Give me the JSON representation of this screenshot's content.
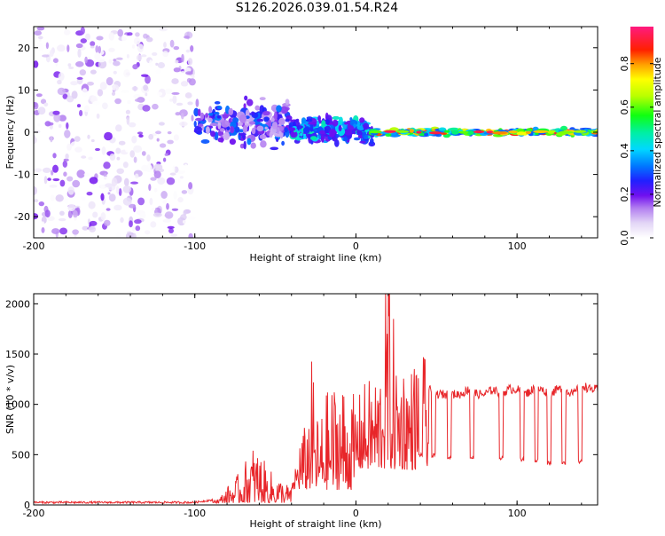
{
  "figure_title": "S126.2026.039.01.54.R24",
  "colors": {
    "snr_line": "#e8262a",
    "spectrogram_colormap": [
      "#ffffff",
      "#e6d8f7",
      "#c9a8f0",
      "#9a5ae8",
      "#7a18ef",
      "#3d12f5",
      "#0000ff",
      "#00b4ff",
      "#00e5c8",
      "#00ff00",
      "#c8ff00",
      "#ffff00",
      "#ff8c00",
      "#ff0000",
      "#ff1493"
    ]
  },
  "chart_data": [
    {
      "type": "heatmap",
      "title": "",
      "xlabel": "Height of straight line (km)",
      "ylabel": "Frequency (Hz)",
      "xlim": [
        -200,
        150
      ],
      "ylim": [
        -25,
        25
      ],
      "xticks": [
        -200,
        -100,
        0,
        100
      ],
      "yticks": [
        -20,
        -10,
        0,
        10,
        20
      ],
      "colorbar": {
        "label": "Normalized spectral amplitude",
        "range": [
          0.0,
          0.97
        ],
        "ticks": [
          "0.0",
          "0.2",
          "0.4",
          "0.6",
          "0.8"
        ]
      },
      "regions": [
        {
          "x": [
            -200,
            -101
          ],
          "freq_spread_hz": [
            -25,
            25
          ],
          "amplitude": [
            0.0,
            0.2
          ],
          "description": "noise"
        },
        {
          "x": [
            -100,
            -40
          ],
          "freq_center_hz": 2,
          "freq_halfwidth_hz": 7,
          "amplitude": [
            0.1,
            0.35
          ]
        },
        {
          "x": [
            -40,
            10
          ],
          "freq_center_hz": 0.5,
          "freq_halfwidth_hz": 4,
          "amplitude": [
            0.2,
            0.5
          ]
        },
        {
          "x": [
            10,
            150
          ],
          "freq_center_hz": 0,
          "freq_halfwidth_hz": 1,
          "amplitude": [
            0.3,
            0.97
          ]
        }
      ]
    },
    {
      "type": "line",
      "title": "",
      "xlabel": "Height of straight line (km)",
      "ylabel": "SNR (10 * v/v)",
      "xlim": [
        -200,
        150
      ],
      "ylim": [
        0,
        2100
      ],
      "xticks": [
        -200,
        -100,
        0,
        100
      ],
      "yticks": [
        0,
        500,
        1000,
        1500,
        2000
      ],
      "series": [
        {
          "name": "SNR",
          "x": [
            -200,
            -150,
            -100,
            -85,
            -80,
            -70,
            -65,
            -60,
            -55,
            -50,
            -45,
            -40,
            -35,
            -30,
            -28,
            -25,
            -22,
            -20,
            -15,
            -10,
            -5,
            0,
            5,
            10,
            15,
            18,
            20,
            25,
            30,
            35,
            40,
            45,
            50,
            55,
            60,
            65,
            70,
            75,
            80,
            85,
            90,
            95,
            100,
            105,
            110,
            115,
            120,
            125,
            130,
            135,
            140,
            145,
            150
          ],
          "y": [
            25,
            25,
            25,
            60,
            150,
            300,
            500,
            450,
            300,
            250,
            200,
            150,
            600,
            700,
            1300,
            800,
            700,
            900,
            1000,
            1100,
            950,
            900,
            1050,
            1100,
            1200,
            2100,
            2100,
            1300,
            1250,
            1200,
            1400,
            1150,
            1100,
            1100,
            1100,
            1100,
            1150,
            1100,
            1100,
            1150,
            1100,
            1150,
            1150,
            1100,
            1150,
            1150,
            1100,
            1150,
            1150,
            1100,
            1200,
            1150,
            1150
          ]
        }
      ],
      "dropouts": [
        {
          "x": 40,
          "y": 500
        },
        {
          "x": 48,
          "y": 490
        },
        {
          "x": 58,
          "y": 480
        },
        {
          "x": 72,
          "y": 470
        },
        {
          "x": 90,
          "y": 470
        },
        {
          "x": 103,
          "y": 450
        },
        {
          "x": 112,
          "y": 440
        },
        {
          "x": 120,
          "y": 420
        },
        {
          "x": 129,
          "y": 420
        },
        {
          "x": 139,
          "y": 430
        }
      ]
    }
  ]
}
